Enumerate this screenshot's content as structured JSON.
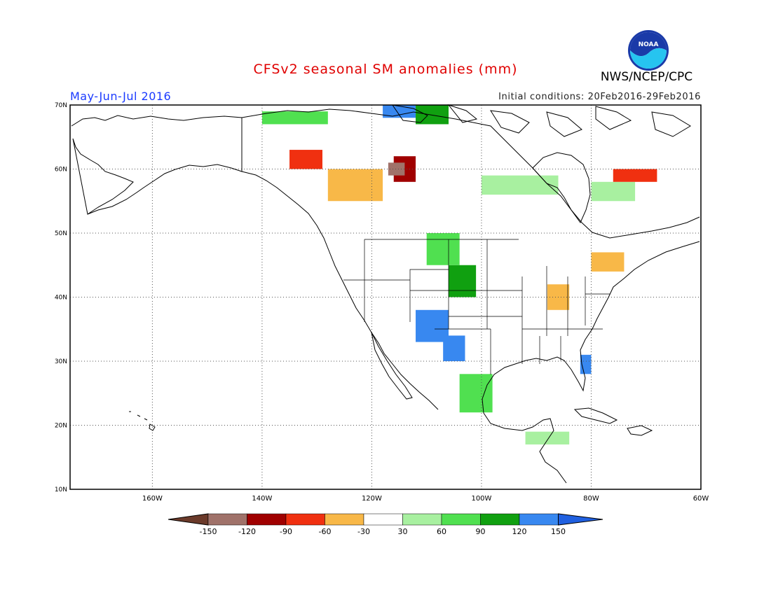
{
  "title": "CFSv2 seasonal SM anomalies (mm)",
  "period": "May-Jun-Jul 2016",
  "initial_conditions": "Initial conditions: 20Feb2016-29Feb2016",
  "agency": "NWS/NCEP/CPC",
  "logo_text": "NOAA",
  "map": {
    "lon_range": [
      -175,
      -60
    ],
    "lat_range": [
      10,
      70
    ],
    "lon_ticks": [
      {
        "value": -160,
        "label": "160W"
      },
      {
        "value": -140,
        "label": "140W"
      },
      {
        "value": -120,
        "label": "120W"
      },
      {
        "value": -100,
        "label": "100W"
      },
      {
        "value": -80,
        "label": "80W"
      },
      {
        "value": -60,
        "label": "60W"
      }
    ],
    "lat_ticks": [
      {
        "value": 10,
        "label": "10N"
      },
      {
        "value": 20,
        "label": "20N"
      },
      {
        "value": 30,
        "label": "30N"
      },
      {
        "value": 40,
        "label": "40N"
      },
      {
        "value": 50,
        "label": "50N"
      },
      {
        "value": 60,
        "label": "60N"
      },
      {
        "value": 70,
        "label": "70N"
      }
    ],
    "gridlines": "dotted",
    "anomaly_regions": [
      {
        "class": "120..150",
        "lon": -112,
        "lat": 33,
        "w": 6,
        "h": 5
      },
      {
        "class": "120..150",
        "lon": -107,
        "lat": 30,
        "w": 4,
        "h": 4
      },
      {
        "class": "120..150",
        "lon": -118,
        "lat": 68,
        "w": 6,
        "h": 2
      },
      {
        "class": "120..150",
        "lon": -82,
        "lat": 28,
        "w": 2,
        "h": 3
      },
      {
        "class": "90..120",
        "lon": -106,
        "lat": 40,
        "w": 5,
        "h": 5
      },
      {
        "class": "90..120",
        "lon": -112,
        "lat": 67,
        "w": 6,
        "h": 3
      },
      {
        "class": "60..90",
        "lon": -110,
        "lat": 45,
        "w": 6,
        "h": 5
      },
      {
        "class": "60..90",
        "lon": -104,
        "lat": 22,
        "w": 6,
        "h": 6
      },
      {
        "class": "60..90",
        "lon": -140,
        "lat": 67,
        "w": 12,
        "h": 2
      },
      {
        "class": "30..60",
        "lon": -100,
        "lat": 56,
        "w": 14,
        "h": 3
      },
      {
        "class": "30..60",
        "lon": -80,
        "lat": 55,
        "w": 8,
        "h": 3
      },
      {
        "class": "30..60",
        "lon": -92,
        "lat": 17,
        "w": 8,
        "h": 2
      },
      {
        "class": "-60..-30",
        "lon": -128,
        "lat": 55,
        "w": 10,
        "h": 5
      },
      {
        "class": "-60..-30",
        "lon": -88,
        "lat": 38,
        "w": 4,
        "h": 4
      },
      {
        "class": "-60..-30",
        "lon": -80,
        "lat": 44,
        "w": 6,
        "h": 3
      },
      {
        "class": "-90..-60",
        "lon": -135,
        "lat": 60,
        "w": 6,
        "h": 3
      },
      {
        "class": "-90..-60",
        "lon": -76,
        "lat": 58,
        "w": 8,
        "h": 2
      },
      {
        "class": "-120..-90",
        "lon": -116,
        "lat": 58,
        "w": 4,
        "h": 4
      },
      {
        "class": "-150..-120",
        "lon": -117,
        "lat": 59,
        "w": 3,
        "h": 2
      }
    ]
  },
  "legend": {
    "labels": [
      "-150",
      "-120",
      "-90",
      "-60",
      "-30",
      "30",
      "60",
      "90",
      "120",
      "150"
    ],
    "colors": [
      "#6b3a2a",
      "#a0726a",
      "#a00000",
      "#f03010",
      "#f8b848",
      "#ffffff",
      "#a8f0a0",
      "#50e050",
      "#10a010",
      "#3888f0",
      "#2060e0"
    ]
  },
  "colors": {
    "title": "#e00000",
    "period": "#1a3aff",
    "coastline": "#000000",
    "class_colors": {
      "-150..-120": "#a0726a",
      "-120..-90": "#a00000",
      "-90..-60": "#f03010",
      "-60..-30": "#f8b848",
      "30..60": "#a8f0a0",
      "60..90": "#50e050",
      "90..120": "#10a010",
      "120..150": "#3888f0"
    }
  }
}
